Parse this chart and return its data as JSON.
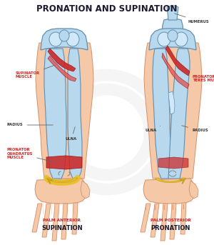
{
  "title": "PRONATION AND SUPINATION",
  "title_color": "#1a1a2e",
  "title_fontsize": 8.5,
  "title_fontweight": "bold",
  "background_color": "#ffffff",
  "left_label_top": "PALM ANTERIOR",
  "left_label_bottom": "SUPINATION",
  "right_label_top": "PALM POSTERIOR",
  "right_label_bottom": "PRONATION",
  "label_color_top": "#cc2222",
  "label_color_bottom": "#1a1a2e",
  "annotation_color": "#cc2222",
  "bone_fill": "#b8d8ee",
  "bone_stroke": "#6090b0",
  "bone_fill2": "#d0e8f8",
  "muscle_color": "#cc2222",
  "muscle_color2": "#e05050",
  "skin_color": "#f5c8a8",
  "skin_edge": "#d4906a",
  "arrow_color": "#e8c030",
  "gray_label_color": "#333333"
}
